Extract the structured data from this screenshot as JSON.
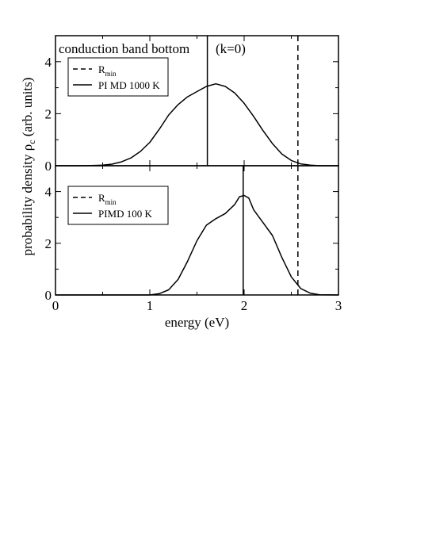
{
  "chart_data": [
    {
      "type": "line",
      "panel": "top",
      "title_left": "conduction band bottom",
      "title_right": "(k=0)",
      "xlim": [
        0,
        3
      ],
      "ylim": [
        0,
        5
      ],
      "yticks": [
        0,
        2,
        4
      ],
      "vlines": [
        {
          "x": 1.61,
          "style": "solid",
          "meaning": "PI MD 1000 K"
        },
        {
          "x": 2.57,
          "style": "dashed",
          "meaning": "R_min"
        }
      ],
      "legend": {
        "placement": "top-left",
        "entries": [
          {
            "style": "dashed",
            "label": "R",
            "sub": "min"
          },
          {
            "style": "solid",
            "label": "PI MD 1000 K",
            "sub": ""
          }
        ]
      },
      "series": [
        {
          "name": "PI MD 1000 K",
          "x": [
            0.0,
            0.3,
            0.5,
            0.6,
            0.7,
            0.8,
            0.9,
            1.0,
            1.1,
            1.2,
            1.3,
            1.4,
            1.5,
            1.6,
            1.7,
            1.8,
            1.9,
            2.0,
            2.1,
            2.2,
            2.3,
            2.4,
            2.5,
            2.6,
            2.7,
            2.8,
            3.0
          ],
          "y": [
            0.0,
            0.0,
            0.02,
            0.06,
            0.15,
            0.3,
            0.55,
            0.9,
            1.4,
            1.95,
            2.35,
            2.65,
            2.85,
            3.05,
            3.15,
            3.05,
            2.8,
            2.4,
            1.9,
            1.35,
            0.85,
            0.45,
            0.2,
            0.07,
            0.02,
            0.0,
            0.0
          ]
        }
      ]
    },
    {
      "type": "line",
      "panel": "bottom",
      "xlabel": "energy (eV)",
      "xlim": [
        0,
        3
      ],
      "ylim": [
        0,
        5
      ],
      "xticks": [
        0,
        1,
        2,
        3
      ],
      "yticks": [
        0,
        2,
        4
      ],
      "vlines": [
        {
          "x": 1.99,
          "style": "solid",
          "meaning": "PIMD 100 K"
        },
        {
          "x": 2.57,
          "style": "dashed",
          "meaning": "R_min"
        }
      ],
      "legend": {
        "placement": "top-left",
        "entries": [
          {
            "style": "dashed",
            "label": "R",
            "sub": "min"
          },
          {
            "style": "solid",
            "label": "PIMD 100 K",
            "sub": ""
          }
        ]
      },
      "series": [
        {
          "name": "PIMD 100 K",
          "x": [
            0.0,
            1.0,
            1.1,
            1.2,
            1.3,
            1.4,
            1.5,
            1.6,
            1.7,
            1.8,
            1.9,
            1.95,
            2.0,
            2.05,
            2.1,
            2.2,
            2.3,
            2.4,
            2.5,
            2.6,
            2.7,
            2.8,
            3.0
          ],
          "y": [
            0.0,
            0.0,
            0.05,
            0.2,
            0.6,
            1.3,
            2.1,
            2.7,
            2.95,
            3.15,
            3.5,
            3.8,
            3.85,
            3.75,
            3.3,
            2.8,
            2.3,
            1.45,
            0.7,
            0.25,
            0.07,
            0.01,
            0.0
          ]
        }
      ]
    }
  ],
  "ylabel": "probability density ρ",
  "ylabel_sub": "c",
  "ylabel_suffix": " (arb. units)"
}
